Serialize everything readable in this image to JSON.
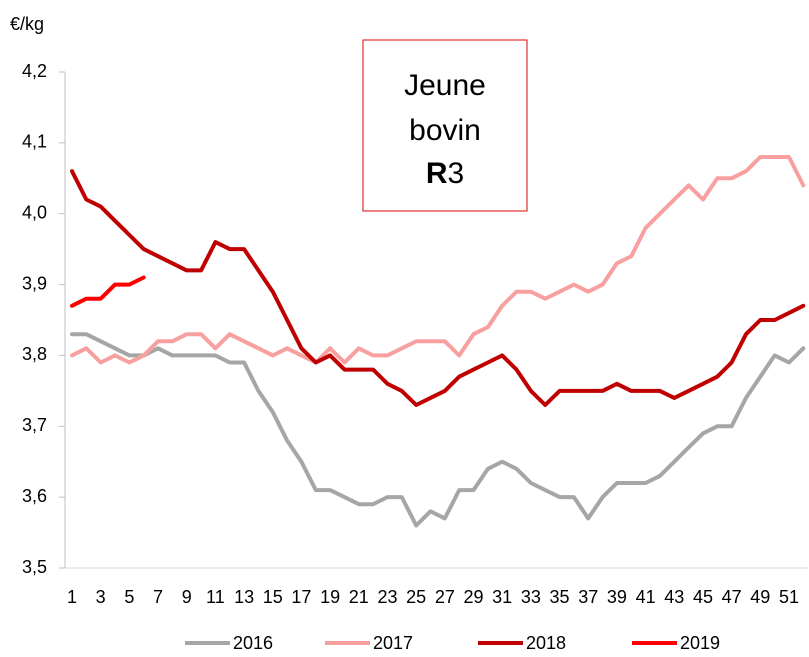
{
  "chart_data": {
    "type": "line",
    "y_label": "€/kg",
    "annotation": [
      [
        {
          "text": "Jeune",
          "bold": false
        }
      ],
      [
        {
          "text": "bovin",
          "bold": false
        }
      ],
      [
        {
          "text": "R",
          "bold": true
        },
        {
          "text": "3",
          "bold": false
        }
      ]
    ],
    "categories": [
      1,
      null,
      3,
      null,
      5,
      null,
      7,
      null,
      9,
      null,
      11,
      null,
      13,
      null,
      15,
      null,
      17,
      null,
      19,
      null,
      21,
      null,
      23,
      null,
      25,
      null,
      27,
      null,
      29,
      null,
      31,
      null,
      33,
      null,
      35,
      null,
      37,
      null,
      39,
      null,
      41,
      null,
      43,
      null,
      45,
      null,
      47,
      null,
      49,
      null,
      51,
      null
    ],
    "ylim": [
      3.5,
      4.2
    ],
    "yticks": [
      {
        "value": 3.5,
        "label": "3,5"
      },
      {
        "value": 3.6,
        "label": "3,6"
      },
      {
        "value": 3.7,
        "label": "3,7"
      },
      {
        "value": 3.8,
        "label": "3,8"
      },
      {
        "value": 3.9,
        "label": "3,9"
      },
      {
        "value": 4.0,
        "label": "4,0"
      },
      {
        "value": 4.1,
        "label": "4,1"
      },
      {
        "value": 4.2,
        "label": "4,2"
      }
    ],
    "legend": "bottom",
    "series": [
      {
        "name": "2016",
        "color": "#a6a6a6",
        "values": [
          3.83,
          3.83,
          3.82,
          3.81,
          3.8,
          3.8,
          3.81,
          3.8,
          3.8,
          3.8,
          3.8,
          3.79,
          3.79,
          3.75,
          3.72,
          3.68,
          3.65,
          3.61,
          3.61,
          3.6,
          3.59,
          3.59,
          3.6,
          3.6,
          3.56,
          3.58,
          3.57,
          3.61,
          3.61,
          3.64,
          3.65,
          3.64,
          3.62,
          3.61,
          3.6,
          3.6,
          3.57,
          3.6,
          3.62,
          3.62,
          3.62,
          3.63,
          3.65,
          3.67,
          3.69,
          3.7,
          3.7,
          3.74,
          3.77,
          3.8,
          3.79,
          3.81
        ]
      },
      {
        "name": "2017",
        "color": "#f8a0a0",
        "values": [
          3.8,
          3.81,
          3.79,
          3.8,
          3.79,
          3.8,
          3.82,
          3.82,
          3.83,
          3.83,
          3.81,
          3.83,
          3.82,
          3.81,
          3.8,
          3.81,
          3.8,
          3.79,
          3.81,
          3.79,
          3.81,
          3.8,
          3.8,
          3.81,
          3.82,
          3.82,
          3.82,
          3.8,
          3.83,
          3.84,
          3.87,
          3.89,
          3.89,
          3.88,
          3.89,
          3.9,
          3.89,
          3.9,
          3.93,
          3.94,
          3.98,
          4.0,
          4.02,
          4.04,
          4.02,
          4.05,
          4.05,
          4.06,
          4.08,
          4.08,
          4.08,
          4.04
        ]
      },
      {
        "name": "2018",
        "color": "#c00000",
        "values": [
          4.06,
          4.02,
          4.01,
          3.99,
          3.97,
          3.95,
          3.94,
          3.93,
          3.92,
          3.92,
          3.96,
          3.95,
          3.95,
          3.92,
          3.89,
          3.85,
          3.81,
          3.79,
          3.8,
          3.78,
          3.78,
          3.78,
          3.76,
          3.75,
          3.73,
          3.74,
          3.75,
          3.77,
          3.78,
          3.79,
          3.8,
          3.78,
          3.75,
          3.73,
          3.75,
          3.75,
          3.75,
          3.75,
          3.76,
          3.75,
          3.75,
          3.75,
          3.74,
          3.75,
          3.76,
          3.77,
          3.79,
          3.83,
          3.85,
          3.85,
          3.86,
          3.87
        ]
      },
      {
        "name": "2019",
        "color": "#ff0000",
        "values": [
          3.87,
          3.88,
          3.88,
          3.9,
          3.9,
          3.91,
          null,
          null,
          null,
          null,
          null,
          null,
          null,
          null,
          null,
          null,
          null,
          null,
          null,
          null,
          null,
          null,
          null,
          null,
          null,
          null,
          null,
          null,
          null,
          null,
          null,
          null,
          null,
          null,
          null,
          null,
          null,
          null,
          null,
          null,
          null,
          null,
          null,
          null,
          null,
          null,
          null,
          null,
          null,
          null,
          null,
          null
        ]
      }
    ]
  }
}
